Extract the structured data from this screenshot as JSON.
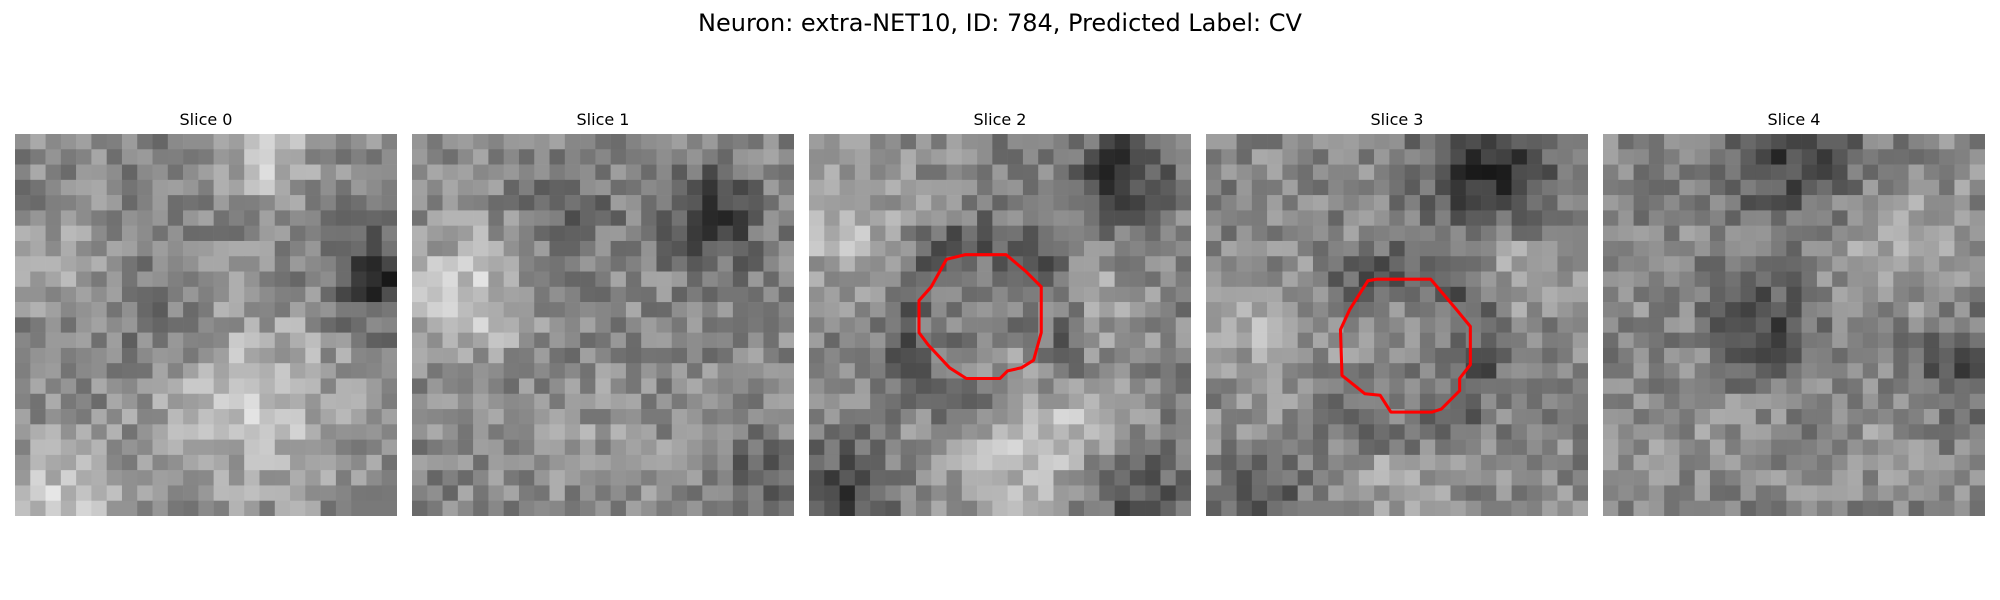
{
  "figure": {
    "title": "Neuron: extra-NET10, ID: 784, Predicted Label: CV",
    "contour_color": "#ff0000",
    "colormap": "gray"
  },
  "panels": [
    {
      "title": "Slice 0",
      "has_contour": false
    },
    {
      "title": "Slice 1",
      "has_contour": false
    },
    {
      "title": "Slice 2",
      "has_contour": true
    },
    {
      "title": "Slice 3",
      "has_contour": true
    },
    {
      "title": "Slice 4",
      "has_contour": false
    }
  ]
}
